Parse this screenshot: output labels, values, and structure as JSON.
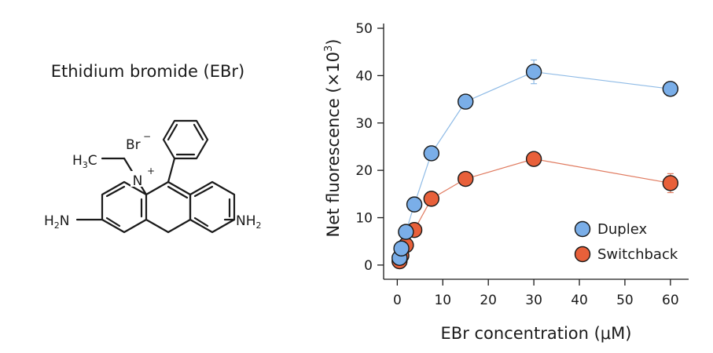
{
  "molecule": {
    "title": "Ethidium bromide (EBr)",
    "labels": {
      "counter_ion": "Br",
      "counter_ion_charge": "−",
      "ethyl_h": "H",
      "ethyl_sub": "3",
      "ethyl_c": "C",
      "nitrogen": "N",
      "nitrogen_charge": "+",
      "amine_left_h": "H",
      "amine_left_sub": "2",
      "amine_left_n": "N",
      "amine_right_nh": "NH",
      "amine_right_sub": "2"
    }
  },
  "chart_data": {
    "type": "scatter",
    "xlabel": "EBr concentration (μM)",
    "ylabel_main": "Net fluorescence (×10",
    "ylabel_sup": "3",
    "ylabel_close": ")",
    "xlim": [
      -3,
      64
    ],
    "ylim": [
      -3,
      51
    ],
    "x_ticks": [
      0,
      10,
      20,
      30,
      40,
      50,
      60
    ],
    "x_tick_labels": [
      "0",
      "10",
      "20",
      "30",
      "40",
      "50",
      "60"
    ],
    "y_ticks": [
      0,
      10,
      20,
      30,
      40,
      50
    ],
    "y_tick_labels": [
      "0",
      "10",
      "20",
      "30",
      "40",
      "50"
    ],
    "legend_position": "bottom-right",
    "series": [
      {
        "name": "Duplex",
        "color": "#7aaee8",
        "line_color": "#8fbbe6",
        "x": [
          0.5,
          0.9,
          1.9,
          3.75,
          7.5,
          15,
          30,
          60
        ],
        "y": [
          1.5,
          3.5,
          7.0,
          12.8,
          23.6,
          34.5,
          40.8,
          37.2
        ],
        "err": [
          0,
          0,
          0,
          0,
          0,
          0,
          2.5,
          0
        ]
      },
      {
        "name": "Switchback",
        "color": "#e8603a",
        "line_color": "#e07b60",
        "x": [
          0.5,
          0.9,
          1.9,
          3.75,
          7.5,
          15,
          30,
          60
        ],
        "y": [
          0.8,
          2.0,
          4.2,
          7.4,
          14.0,
          18.2,
          22.4,
          17.3
        ],
        "err": [
          0,
          0,
          0,
          0,
          0,
          0,
          0,
          2.0
        ]
      }
    ]
  }
}
